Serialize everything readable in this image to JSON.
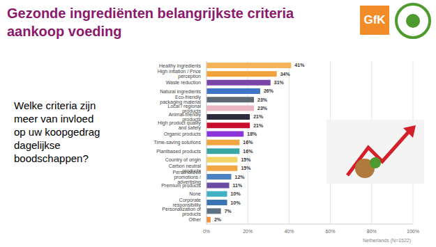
{
  "chart_data": {
    "type": "bar",
    "title": "Gezonde ingrediënten belangrijkste criteria aankoop voeding",
    "subtitle": "Welke criteria zijn meer van invloed op uw koopgedrag dagelijkse boodschappen?",
    "annotations": [
      "Netherlands (N=1522)",
      "GfK"
    ],
    "orientation": "horizontal",
    "categories": [
      "Healthy ingredients",
      "High inflation / Price perception",
      "Waste reduction",
      "Natural ingredients",
      "Eco-friendly packaging material",
      "Local / regional products",
      "Animal-friendly products",
      "High product quality and safety",
      "Organic products",
      "Time-saving solutions",
      "Plantbased products",
      "Country of origin",
      "Carbon neutral products",
      "Personalized promotions / advertising",
      "Premium products",
      "None",
      "Corporate responsibility",
      "Personalization of products",
      "Other"
    ],
    "values": [
      41,
      34,
      31,
      26,
      23,
      23,
      21,
      21,
      18,
      16,
      16,
      15,
      15,
      12,
      11,
      10,
      10,
      7,
      2
    ],
    "value_labels": [
      "41%",
      "34%",
      "31%",
      "26%",
      "23%",
      "23%",
      "21%",
      "21%",
      "18%",
      "16%",
      "16%",
      "15%",
      "15%",
      "12%",
      "11%",
      "10%",
      "10%",
      "7%",
      "2%"
    ],
    "data_labels": true,
    "colors": [
      "#f5b35c",
      "#f0a33a",
      "#7a45a8",
      "#3f74c6",
      "#5d6872",
      "#e9b7c4",
      "#2b2d3c",
      "#c8102e",
      "#8b34d9",
      "#f2a63f",
      "#38a6a2",
      "#f1d463",
      "#f2a745",
      "#4c82c2",
      "#6b4ca3",
      "#3fb1c3",
      "#3b72b2",
      "#5f7182",
      "#f0923a"
    ],
    "xlim": [
      0,
      100
    ],
    "xticks": [
      {
        "value": 0,
        "label": "0%"
      },
      {
        "value": 20,
        "label": "20%"
      },
      {
        "value": 40,
        "label": "40%"
      },
      {
        "value": 60,
        "label": "60%"
      },
      {
        "value": 80,
        "label": "80%"
      },
      {
        "value": 100,
        "label": "100%"
      }
    ],
    "grid": true
  }
}
